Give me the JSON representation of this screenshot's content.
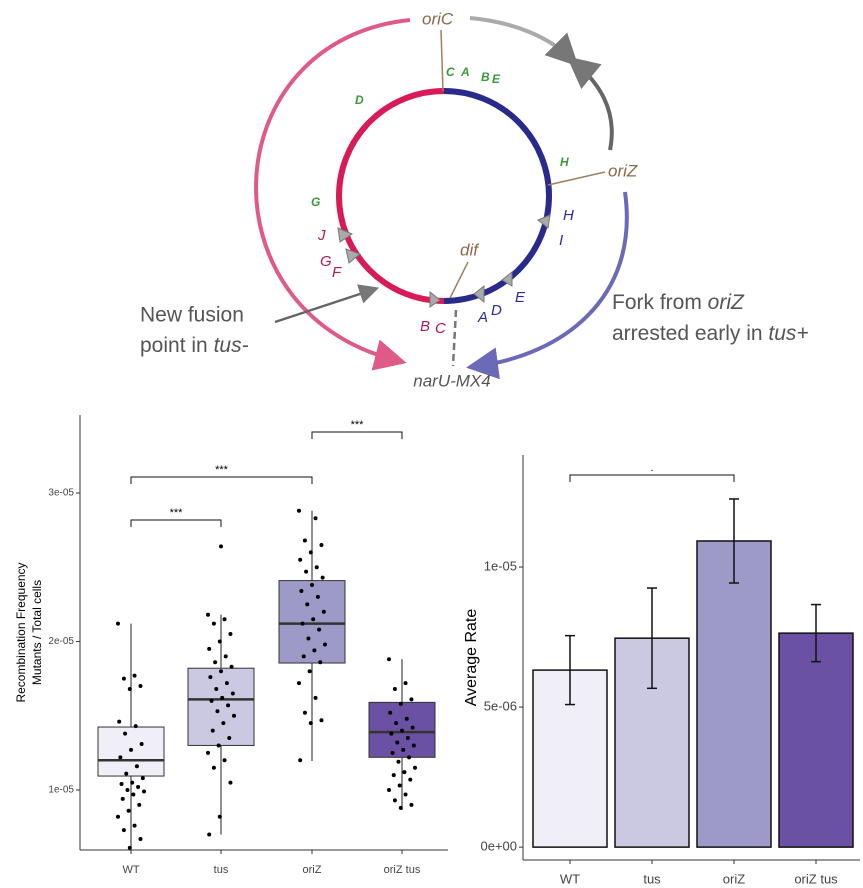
{
  "diagram": {
    "oriC": "oriC",
    "oriZ": "oriZ",
    "dif": "dif",
    "narU": "narU-MX4",
    "fusion": [
      "New fusion",
      "point in ",
      "tus-"
    ],
    "fork": [
      "Fork from ",
      "oriZ",
      "arrested early in ",
      "tus+"
    ],
    "green_sites": [
      "C",
      "A",
      "B",
      "E",
      "D",
      "H",
      "G"
    ],
    "red_sites": [
      "J",
      "G",
      "F",
      "B",
      "C"
    ],
    "blue_sites": [
      "H",
      "I",
      "A",
      "D",
      "E"
    ]
  },
  "chart_data": [
    {
      "type": "box",
      "ylabel": [
        "Recombination Frequency",
        "Mutants / Total cells"
      ],
      "categories": [
        "WT",
        "tus",
        "oriZ",
        "oriZ tus"
      ],
      "colors": [
        "#f0eff7",
        "#cbc9e2",
        "#9e9ac8",
        "#6a51a3"
      ],
      "ylim": [
        5.96e-06,
        3.525e-05
      ],
      "yticks": [
        {
          "value": 1e-05,
          "label": "1e-05"
        },
        {
          "value": 2e-05,
          "label": "2e-05"
        },
        {
          "value": 3e-05,
          "label": "3e-05"
        }
      ],
      "boxes": [
        {
          "whisker_low": 6.1e-06,
          "q1": 1.094e-05,
          "median": 1.2e-05,
          "q3": 1.424e-05,
          "whisker_high": 2.12e-05,
          "outliers": [],
          "points": [
            2.12e-05,
            1.77e-05,
            1.75e-05,
            1.7e-05,
            1.68e-05,
            1.46e-05,
            1.43e-05,
            1.38e-05,
            1.31e-05,
            1.27e-05,
            1.22e-05,
            1.16e-05,
            1.11e-05,
            1.08e-05,
            1.05e-05,
            1.04e-05,
            1.02e-05,
            1e-05,
            9.9e-06,
            9.7e-06,
            9.4e-06,
            9e-06,
            8.6e-06,
            8.2e-06,
            7.6e-06,
            7.3e-06,
            6.7e-06,
            6.1e-06
          ]
        },
        {
          "whisker_low": 7e-06,
          "q1": 1.3e-05,
          "median": 1.61e-05,
          "q3": 1.82e-05,
          "whisker_high": 2.18e-05,
          "outliers": [
            2.64e-05
          ],
          "points": [
            2.18e-05,
            2.15e-05,
            2.12e-05,
            2.05e-05,
            2e-05,
            1.95e-05,
            1.9e-05,
            1.86e-05,
            1.83e-05,
            1.8e-05,
            1.76e-05,
            1.72e-05,
            1.68e-05,
            1.65e-05,
            1.62e-05,
            1.6e-05,
            1.57e-05,
            1.53e-05,
            1.5e-05,
            1.45e-05,
            1.4e-05,
            1.35e-05,
            1.3e-05,
            1.25e-05,
            1.2e-05,
            1.15e-05,
            1.05e-05,
            8.2e-06,
            7e-06
          ]
        },
        {
          "whisker_low": 1.195e-05,
          "q1": 1.855e-05,
          "median": 2.12e-05,
          "q3": 2.41e-05,
          "whisker_high": 2.88e-05,
          "outliers": [],
          "points": [
            2.88e-05,
            2.83e-05,
            2.68e-05,
            2.65e-05,
            2.6e-05,
            2.55e-05,
            2.5e-05,
            2.47e-05,
            2.43e-05,
            2.38e-05,
            2.34e-05,
            2.3e-05,
            2.25e-05,
            2.2e-05,
            2.15e-05,
            2.12e-05,
            2.08e-05,
            2.02e-05,
            1.98e-05,
            1.94e-05,
            1.9e-05,
            1.86e-05,
            1.8e-05,
            1.72e-05,
            1.62e-05,
            1.52e-05,
            1.47e-05,
            1.45e-05,
            1.2e-05
          ]
        },
        {
          "whisker_low": 8.65e-06,
          "q1": 1.22e-05,
          "median": 1.39e-05,
          "q3": 1.59e-05,
          "whisker_high": 1.88e-05,
          "outliers": [],
          "points": [
            1.88e-05,
            1.72e-05,
            1.68e-05,
            1.61e-05,
            1.58e-05,
            1.52e-05,
            1.48e-05,
            1.45e-05,
            1.42e-05,
            1.4e-05,
            1.38e-05,
            1.35e-05,
            1.32e-05,
            1.3e-05,
            1.27e-05,
            1.25e-05,
            1.22e-05,
            1.19e-05,
            1.15e-05,
            1.12e-05,
            1.1e-05,
            1.07e-05,
            1.03e-05,
            1e-05,
            9.7e-06,
            9.3e-06,
            9e-06,
            8.8e-06
          ]
        }
      ],
      "brackets": [
        {
          "label": "***",
          "groups": [
            0,
            1
          ]
        },
        {
          "label": "***",
          "groups": [
            0,
            2
          ]
        },
        {
          "label": "***",
          "groups": [
            2,
            3
          ]
        }
      ]
    },
    {
      "type": "bar",
      "ylabel": "Average Rate",
      "categories": [
        "WT",
        "tus",
        "oriZ",
        "oriZ tus"
      ],
      "colors": [
        "#f0eff7",
        "#cbc9e2",
        "#9e9ac8",
        "#6a51a3"
      ],
      "values": [
        6.32e-06,
        7.46e-06,
        1.093e-05,
        7.64e-06
      ],
      "errors": [
        1.23e-06,
        1.79e-06,
        1.5e-06,
        1.02e-06
      ],
      "ylim": [
        -4.6e-07,
        1.4e-05
      ],
      "yticks": [
        {
          "value": 0,
          "label": "0e+00"
        },
        {
          "value": 5e-06,
          "label": "5e-06"
        },
        {
          "value": 1e-05,
          "label": "1e-05"
        }
      ],
      "brackets": [
        {
          "label": ".",
          "groups": [
            0,
            2
          ]
        }
      ]
    }
  ]
}
